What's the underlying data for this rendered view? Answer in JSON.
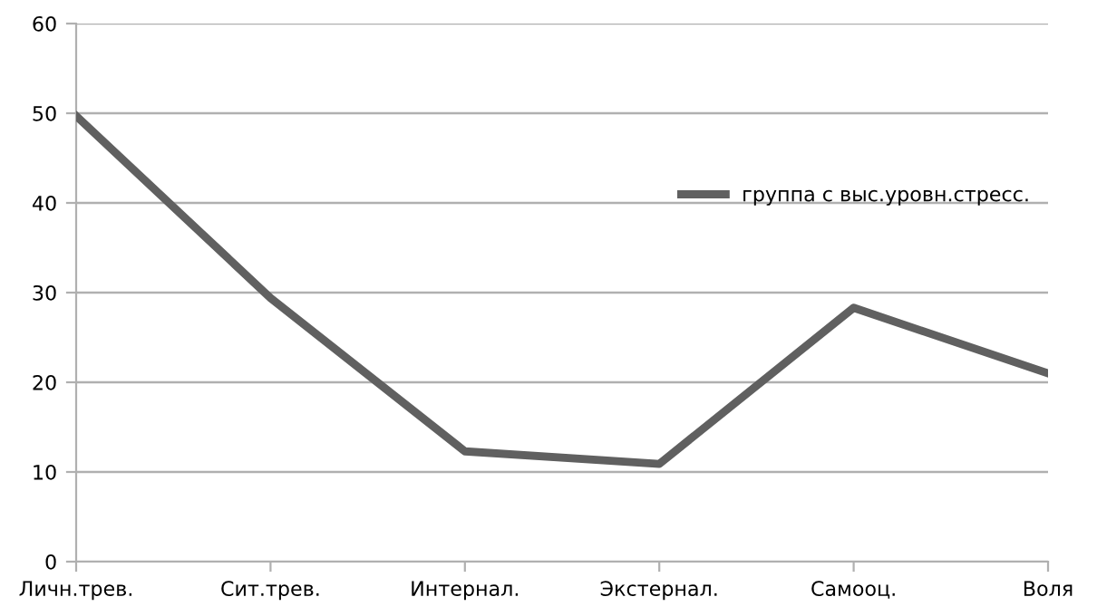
{
  "chart_data": {
    "type": "line",
    "categories": [
      "Личн.трев.",
      "Сит.трев.",
      "Интернал.",
      "Экстернал.",
      "Самооц.",
      "Воля"
    ],
    "series": [
      {
        "name": "группа с выс.уровн.стресс.",
        "color": "#606060",
        "values": [
          49.7,
          29.4,
          12.3,
          10.9,
          28.3,
          21.0
        ]
      }
    ],
    "ylim": [
      0,
      60
    ],
    "yticks": [
      0,
      10,
      20,
      30,
      40,
      50,
      60
    ],
    "grid": "y",
    "legend": "right",
    "marker": "none",
    "line_style": "solid"
  }
}
